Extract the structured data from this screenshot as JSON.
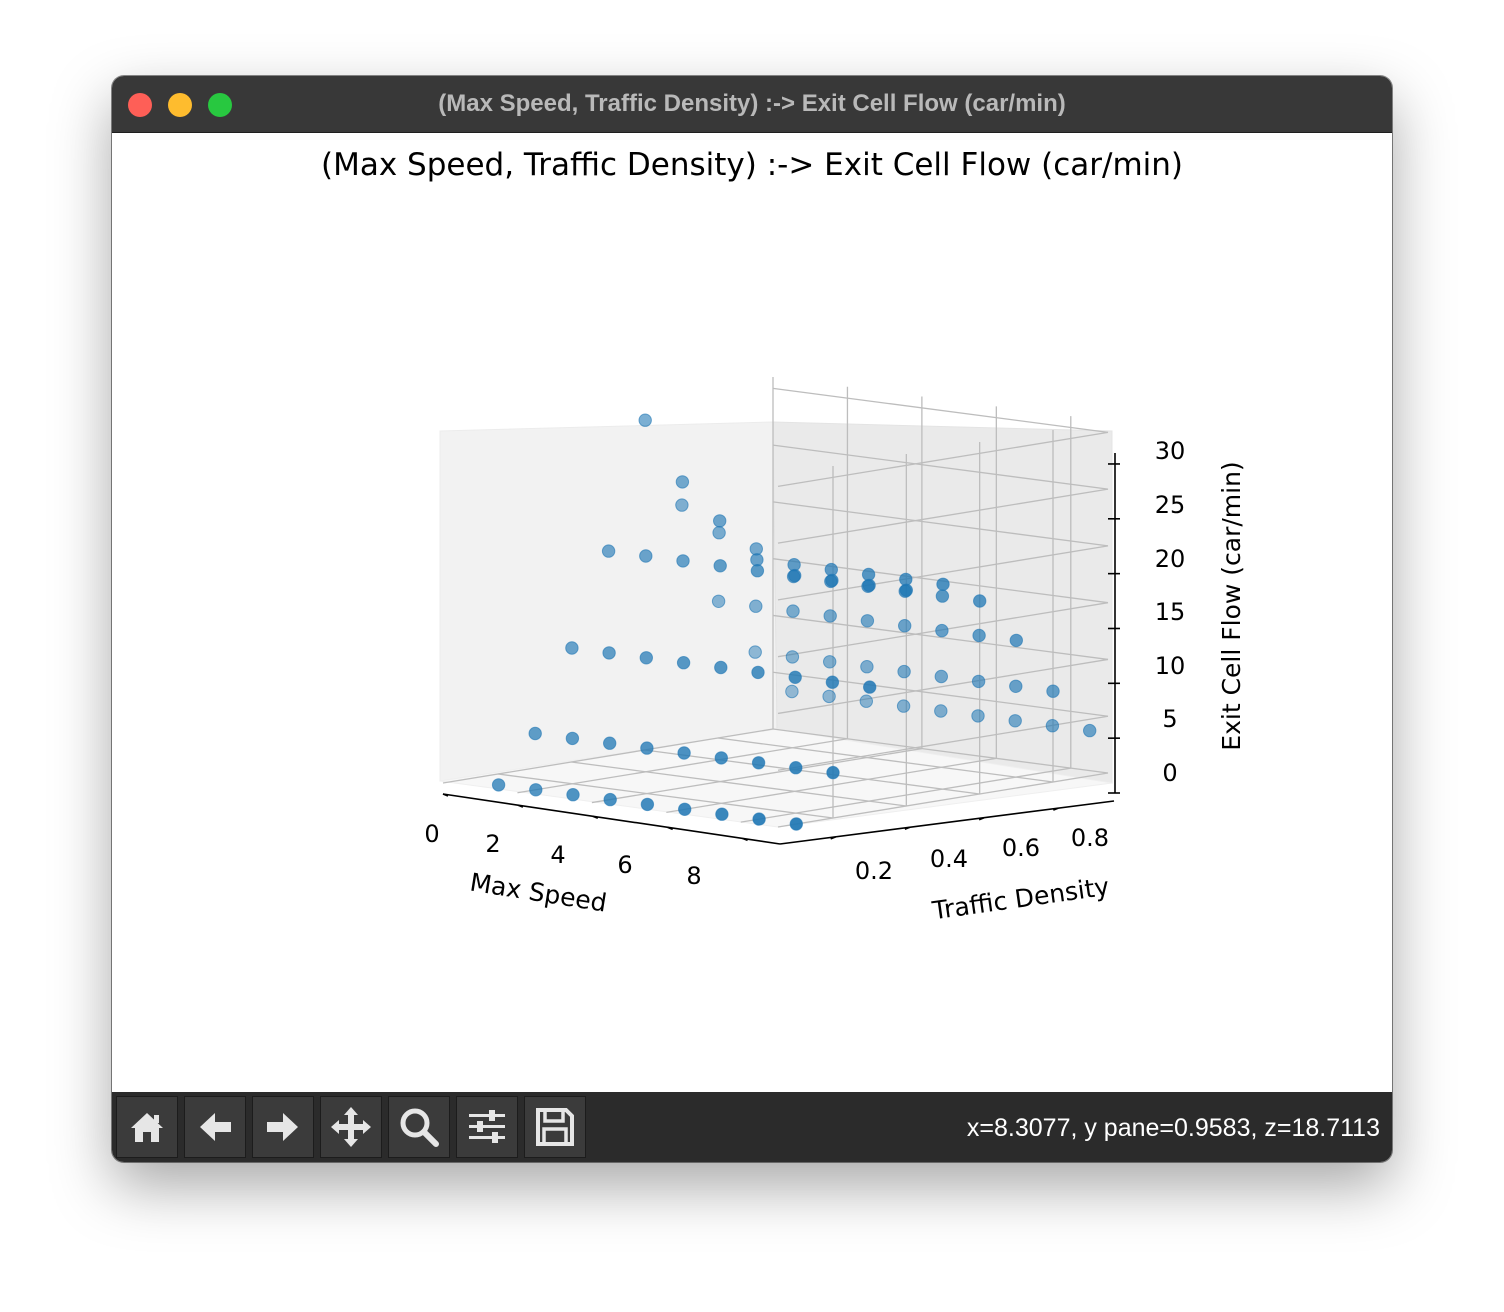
{
  "window": {
    "title": "(Max Speed, Traffic Density) :-> Exit Cell Flow (car/min)"
  },
  "toolbar": {
    "buttons": [
      {
        "name": "home",
        "icon": "home-icon"
      },
      {
        "name": "back",
        "icon": "arrow-left-icon"
      },
      {
        "name": "forward",
        "icon": "arrow-right-icon"
      },
      {
        "name": "pan",
        "icon": "move-icon"
      },
      {
        "name": "zoom",
        "icon": "magnifier-icon"
      },
      {
        "name": "configure-subplots",
        "icon": "sliders-icon"
      },
      {
        "name": "save",
        "icon": "floppy-disk-icon"
      }
    ],
    "coords": "x=8.3077, y pane=0.9583, z=18.7113"
  },
  "colors": {
    "marker": "#1f77b4",
    "titlebar": "#383838",
    "toolbar": "#2b2b2b"
  },
  "chart_data": {
    "type": "scatter",
    "projection": "3d",
    "title": "(Max Speed, Traffic Density) :-> Exit Cell Flow (car/min)",
    "xlabel": "Max Speed",
    "ylabel": "Traffic Density",
    "zlabel": "Exit Cell Flow (car/min)",
    "x_ticks": [
      "0",
      "2",
      "4",
      "6",
      "8"
    ],
    "y_ticks": [
      "0.2",
      "0.4",
      "0.6",
      "0.8"
    ],
    "z_ticks": [
      "0",
      "5",
      "10",
      "15",
      "20",
      "25",
      "30"
    ],
    "xlim": [
      0,
      9
    ],
    "ylim": [
      0.05,
      0.95
    ],
    "zlim": [
      0,
      31
    ],
    "grid": true,
    "points": [
      {
        "x": 1,
        "y": 0.1,
        "z": 0
      },
      {
        "x": 2,
        "y": 0.1,
        "z": 0
      },
      {
        "x": 3,
        "y": 0.1,
        "z": 0
      },
      {
        "x": 4,
        "y": 0.1,
        "z": 0
      },
      {
        "x": 5,
        "y": 0.1,
        "z": 0
      },
      {
        "x": 6,
        "y": 0.1,
        "z": 0
      },
      {
        "x": 7,
        "y": 0.1,
        "z": 0
      },
      {
        "x": 8,
        "y": 0.1,
        "z": 0
      },
      {
        "x": 9,
        "y": 0.1,
        "z": 0
      },
      {
        "x": 1,
        "y": 0.2,
        "z": 4
      },
      {
        "x": 2,
        "y": 0.2,
        "z": 4
      },
      {
        "x": 3,
        "y": 0.2,
        "z": 4
      },
      {
        "x": 4,
        "y": 0.2,
        "z": 4
      },
      {
        "x": 5,
        "y": 0.2,
        "z": 4
      },
      {
        "x": 6,
        "y": 0.2,
        "z": 4
      },
      {
        "x": 7,
        "y": 0.2,
        "z": 4
      },
      {
        "x": 8,
        "y": 0.2,
        "z": 4
      },
      {
        "x": 9,
        "y": 0.2,
        "z": 4
      },
      {
        "x": 1,
        "y": 0.3,
        "z": 11
      },
      {
        "x": 2,
        "y": 0.3,
        "z": 11
      },
      {
        "x": 3,
        "y": 0.3,
        "z": 11
      },
      {
        "x": 4,
        "y": 0.3,
        "z": 11
      },
      {
        "x": 5,
        "y": 0.3,
        "z": 11
      },
      {
        "x": 6,
        "y": 0.3,
        "z": 11
      },
      {
        "x": 7,
        "y": 0.3,
        "z": 11
      },
      {
        "x": 8,
        "y": 0.3,
        "z": 11
      },
      {
        "x": 9,
        "y": 0.3,
        "z": 11
      },
      {
        "x": 1,
        "y": 0.4,
        "z": 19
      },
      {
        "x": 2,
        "y": 0.4,
        "z": 19
      },
      {
        "x": 3,
        "y": 0.4,
        "z": 19
      },
      {
        "x": 4,
        "y": 0.4,
        "z": 19
      },
      {
        "x": 5,
        "y": 0.4,
        "z": 19
      },
      {
        "x": 6,
        "y": 0.4,
        "z": 19
      },
      {
        "x": 7,
        "y": 0.4,
        "z": 19
      },
      {
        "x": 8,
        "y": 0.4,
        "z": 19
      },
      {
        "x": 9,
        "y": 0.4,
        "z": 19
      },
      {
        "x": 1,
        "y": 0.5,
        "z": 30
      },
      {
        "x": 2,
        "y": 0.5,
        "z": 25
      },
      {
        "x": 3,
        "y": 0.5,
        "z": 22
      },
      {
        "x": 4,
        "y": 0.5,
        "z": 19
      },
      {
        "x": 5,
        "y": 0.5,
        "z": 19
      },
      {
        "x": 6,
        "y": 0.5,
        "z": 19
      },
      {
        "x": 7,
        "y": 0.5,
        "z": 19
      },
      {
        "x": 8,
        "y": 0.5,
        "z": 19
      },
      {
        "x": 9,
        "y": 0.5,
        "z": 19
      },
      {
        "x": 1,
        "y": 0.6,
        "z": 22
      },
      {
        "x": 2,
        "y": 0.6,
        "z": 20
      },
      {
        "x": 3,
        "y": 0.6,
        "z": 19
      },
      {
        "x": 4,
        "y": 0.6,
        "z": 17
      },
      {
        "x": 5,
        "y": 0.6,
        "z": 17
      },
      {
        "x": 6,
        "y": 0.6,
        "z": 17
      },
      {
        "x": 7,
        "y": 0.6,
        "z": 17
      },
      {
        "x": 8,
        "y": 0.6,
        "z": 17
      },
      {
        "x": 9,
        "y": 0.6,
        "z": 17
      },
      {
        "x": 1,
        "y": 0.7,
        "z": 13
      },
      {
        "x": 2,
        "y": 0.7,
        "z": 13
      },
      {
        "x": 3,
        "y": 0.7,
        "z": 13
      },
      {
        "x": 4,
        "y": 0.7,
        "z": 13
      },
      {
        "x": 5,
        "y": 0.7,
        "z": 13
      },
      {
        "x": 6,
        "y": 0.7,
        "z": 13
      },
      {
        "x": 7,
        "y": 0.7,
        "z": 13
      },
      {
        "x": 8,
        "y": 0.7,
        "z": 13
      },
      {
        "x": 9,
        "y": 0.7,
        "z": 13
      },
      {
        "x": 1,
        "y": 0.8,
        "z": 8
      },
      {
        "x": 2,
        "y": 0.8,
        "z": 8
      },
      {
        "x": 3,
        "y": 0.8,
        "z": 8
      },
      {
        "x": 4,
        "y": 0.8,
        "z": 8
      },
      {
        "x": 5,
        "y": 0.8,
        "z": 8
      },
      {
        "x": 6,
        "y": 0.8,
        "z": 8
      },
      {
        "x": 7,
        "y": 0.8,
        "z": 8
      },
      {
        "x": 8,
        "y": 0.8,
        "z": 8
      },
      {
        "x": 9,
        "y": 0.8,
        "z": 8
      },
      {
        "x": 1,
        "y": 0.9,
        "z": 4
      },
      {
        "x": 2,
        "y": 0.9,
        "z": 4
      },
      {
        "x": 3,
        "y": 0.9,
        "z": 4
      },
      {
        "x": 4,
        "y": 0.9,
        "z": 4
      },
      {
        "x": 5,
        "y": 0.9,
        "z": 4
      },
      {
        "x": 6,
        "y": 0.9,
        "z": 4
      },
      {
        "x": 7,
        "y": 0.9,
        "z": 4
      },
      {
        "x": 8,
        "y": 0.9,
        "z": 4
      },
      {
        "x": 9,
        "y": 0.9,
        "z": 4
      }
    ]
  }
}
